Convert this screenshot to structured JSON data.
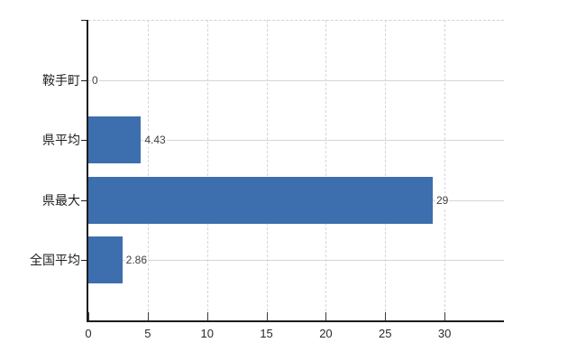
{
  "chart_data": {
    "type": "bar",
    "orientation": "horizontal",
    "title": "",
    "xlabel": "",
    "ylabel": "",
    "categories": [
      "鞍手町",
      "県平均",
      "県最大",
      "全国平均"
    ],
    "values": [
      0,
      4.43,
      29,
      2.86
    ],
    "value_labels": [
      "0",
      "4.43",
      "29",
      "2.86"
    ],
    "x_ticks": [
      0,
      5,
      10,
      15,
      20,
      25,
      30
    ],
    "x_tick_labels": [
      "0",
      "5",
      "10",
      "15",
      "20",
      "25",
      "30"
    ],
    "xlim": [
      0,
      35
    ],
    "grid": true,
    "legend": false,
    "colors": {
      "bar": "#3d6ead",
      "grid": "#d6d6d6",
      "axis": "#1c1c1c",
      "category_label": "#1f1f1f",
      "value_label": "#3f3f3f",
      "tick_label": "#2a2a2a",
      "background": "#ffffff"
    }
  }
}
